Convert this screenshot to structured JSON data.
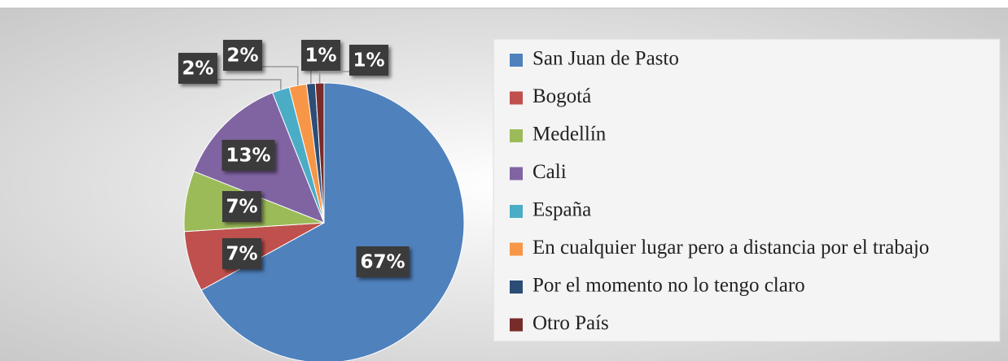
{
  "chart_data": {
    "type": "pie",
    "categories": [
      "San Juan de Pasto",
      "Bogotá",
      "Medellín",
      "Cali",
      "España",
      "En cualquier lugar pero a distancia por el trabajo",
      "Por el momento no lo tengo claro",
      "Otro País"
    ],
    "values": [
      67,
      7,
      7,
      13,
      2,
      2,
      1,
      1
    ],
    "value_labels": [
      "67%",
      "7%",
      "7%",
      "13%",
      "2%",
      "2%",
      "1%",
      "1%"
    ],
    "colors": [
      "#4f81bd",
      "#c0504d",
      "#9bbb59",
      "#8064a2",
      "#4bacc6",
      "#f79646",
      "#2c4d75",
      "#772c2a"
    ],
    "legend": "right"
  }
}
